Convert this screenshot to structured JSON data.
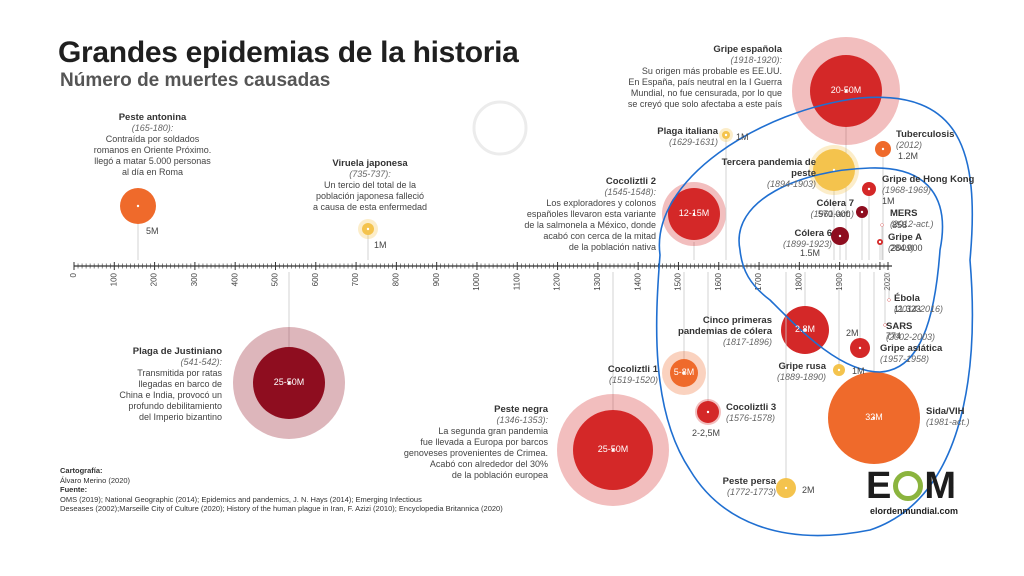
{
  "title": "Grandes epidemias de la historia",
  "subtitle": "Número de muertes causadas",
  "chart_data": {
    "type": "scatter",
    "xlabel": "",
    "ylabel": "",
    "xlim": [
      0,
      2020
    ],
    "axis_ticks": [
      "0",
      "100",
      "200",
      "300",
      "400",
      "500",
      "600",
      "700",
      "800",
      "900",
      "1000",
      "1100",
      "1200",
      "1300",
      "1400",
      "1500",
      "1600",
      "1700",
      "1800",
      "1900",
      "2020"
    ],
    "colors": {
      "darkred": "#8e0d1f",
      "red": "#d42828",
      "orange": "#ef6a2b",
      "yellow": "#f4c34d",
      "outline": "#1f6fd1"
    },
    "points": [
      {
        "id": "antonina",
        "name": "Peste antonina",
        "dates": "(165-180):",
        "desc": [
          "Contraída por soldados",
          "romanos en Oriente Próximo.",
          "llegó a matar 5.000 personas",
          "al día en Roma"
        ],
        "year": 165,
        "deaths_m": 5,
        "value_label": "5M",
        "color": "orange",
        "side": "above"
      },
      {
        "id": "viruela",
        "name": "Viruela japonesa",
        "dates": "(735-737):",
        "desc": [
          "Un tercio del total de la",
          "población japonesa falleció",
          "a causa de esta enfermedad"
        ],
        "year": 735,
        "deaths_m": 1,
        "value_label": "1M",
        "color": "yellow",
        "side": "above"
      },
      {
        "id": "justiniano",
        "name": "Plaga de Justiniano",
        "dates": "(541-542):",
        "desc": [
          "Transmitida por ratas",
          "llegadas en barco de",
          "China e India, provocó un",
          "profundo debilitamiento",
          "del Imperio bizantino"
        ],
        "year": 541,
        "deaths_m": 37.5,
        "value_label": "25-50M",
        "color": "darkred",
        "side": "below"
      },
      {
        "id": "negra",
        "name": "Peste negra",
        "dates": "(1346-1353):",
        "desc": [
          "La segunda gran pandemia",
          "fue llevada a Europa por barcos",
          "genoveses provenientes de Crimea.",
          "Acabó con alrededor del 30%",
          "de la población europea"
        ],
        "year": 1346,
        "deaths_m": 37.5,
        "value_label": "25-50M",
        "color": "red",
        "side": "below"
      },
      {
        "id": "cocoliztli2",
        "name": "Cocoliztli 2",
        "dates": "(1545-1548):",
        "desc": [
          "Los exploradores y colonos",
          "españoles llevaron esta variante",
          "de la salmonela a México, donde",
          "acabó con cerca de la mitad",
          "de la población nativa"
        ],
        "year": 1545,
        "deaths_m": 13.5,
        "value_label": "12-15M",
        "color": "red",
        "side": "above"
      },
      {
        "id": "cocoliztli1",
        "name": "Cocoliztli 1",
        "dates": "(1519-1520)",
        "desc": [],
        "year": 1519,
        "deaths_m": 6.5,
        "value_label": "5-8M",
        "color": "orange",
        "side": "below"
      },
      {
        "id": "cocoliztli3",
        "name": "Cocoliztli 3",
        "dates": "(1576-1578)",
        "desc": [],
        "year": 1576,
        "deaths_m": 2.25,
        "value_label": "2-2,5M",
        "color": "red",
        "side": "below"
      },
      {
        "id": "italiana",
        "name": "Plaga italiana",
        "dates": "(1629-1631)",
        "desc": [],
        "year": 1629,
        "deaths_m": 1,
        "value_label": "1M",
        "color": "yellow",
        "side": "above"
      },
      {
        "id": "espanola",
        "name": "Gripe española",
        "dates": "(1918-1920):",
        "desc": [
          "Su origen más probable es EE.UU.",
          "En España, país neutral en la I Guerra",
          "Mundial, no fue censurada, por lo que",
          "se creyó que solo afectaba a este país"
        ],
        "year": 1918,
        "deaths_m": 35,
        "value_label": "20-50M",
        "color": "red",
        "side": "above"
      },
      {
        "id": "tercera",
        "name": "Tercera pandemia de peste",
        "dates": "(1894-1903)",
        "desc": [],
        "year": 1894,
        "deaths_m": 12,
        "value_label": "",
        "color": "yellow",
        "side": "above"
      },
      {
        "id": "colera7",
        "name": "Cólera 7",
        "dates": "(1961-act.)",
        "desc": [],
        "year": 1961,
        "deaths_m": 0.57,
        "value_label": "570.000",
        "color": "darkred",
        "side": "above"
      },
      {
        "id": "colera6",
        "name": "Cólera 6",
        "dates": "(1899-1923)",
        "desc": [],
        "year": 1899,
        "deaths_m": 1.5,
        "value_label": "1.5M",
        "color": "darkred",
        "side": "above"
      },
      {
        "id": "tuberculosis",
        "name": "Tuberculosis",
        "dates": "(2012)",
        "desc": [],
        "year": 2012,
        "deaths_m": 1.2,
        "value_label": "1.2M",
        "color": "orange",
        "side": "above"
      },
      {
        "id": "hongkong",
        "name": "Gripe de Hong Kong",
        "dates": "(1968-1969)",
        "desc": [],
        "year": 1968,
        "deaths_m": 1,
        "value_label": "1M",
        "color": "red",
        "side": "above"
      },
      {
        "id": "mers",
        "name": "MERS",
        "dates": "(2012-act.)",
        "desc": [],
        "year": 2012,
        "deaths_m": 0.000858,
        "value_label": "858",
        "color": "red",
        "side": "above"
      },
      {
        "id": "gripea",
        "name": "Gripe A",
        "dates": "(2009)",
        "desc": [],
        "year": 2009,
        "deaths_m": 0.284,
        "value_label": "284.000",
        "color": "red",
        "side": "above"
      },
      {
        "id": "colerapan",
        "name": "Cinco primeras pandemias de cólera",
        "dates": "(1817-1896)",
        "desc": [],
        "year": 1817,
        "deaths_m": 2.8,
        "value_label": "2.8M",
        "color": "red",
        "side": "below"
      },
      {
        "id": "asiatica",
        "name": "Gripe asiática",
        "dates": "(1957-1958)",
        "desc": [],
        "year": 1957,
        "deaths_m": 2,
        "value_label": "2M",
        "color": "red",
        "side": "below"
      },
      {
        "id": "rusa",
        "name": "Gripe rusa",
        "dates": "(1889-1890)",
        "desc": [],
        "year": 1889,
        "deaths_m": 1,
        "value_label": "1M",
        "color": "yellow",
        "side": "below"
      },
      {
        "id": "ebola",
        "name": "Ébola",
        "dates": "(2014-2016)",
        "desc": [],
        "year": 2014,
        "deaths_m": 0.011323,
        "value_label": "11.323",
        "color": "red",
        "side": "below"
      },
      {
        "id": "sars",
        "name": "SARS",
        "dates": "(2002-2003)",
        "desc": [],
        "year": 2002,
        "deaths_m": 0.000774,
        "value_label": "774",
        "color": "red",
        "side": "below"
      },
      {
        "id": "sida",
        "name": "Sida/VIH",
        "dates": "(1981-act.)",
        "desc": [],
        "year": 1981,
        "deaths_m": 32,
        "value_label": "32M",
        "color": "orange",
        "side": "below"
      },
      {
        "id": "persa",
        "name": "Peste persa",
        "dates": "(1772-1773)",
        "desc": [],
        "year": 1772,
        "deaths_m": 2,
        "value_label": "2M",
        "color": "yellow",
        "side": "below"
      }
    ]
  },
  "credits": {
    "cartography_label": "Cartografía:",
    "cartography": "Álvaro Merino (2020)",
    "sources_label": "Fuente:",
    "sources": [
      "OMS (2019); National Geographic (2014); Epidemics and pandemics, J. N. Hays (2014); Emerging Infectious",
      "Deseases (2002);Marseille City of Culture (2020); History of the human plague in Iran, F. Azizi (2010); Encyclopedia Britannica (2020)"
    ]
  },
  "logo": {
    "mark_left": "E",
    "mark_right": "M",
    "url": "elordenmundial.com"
  }
}
